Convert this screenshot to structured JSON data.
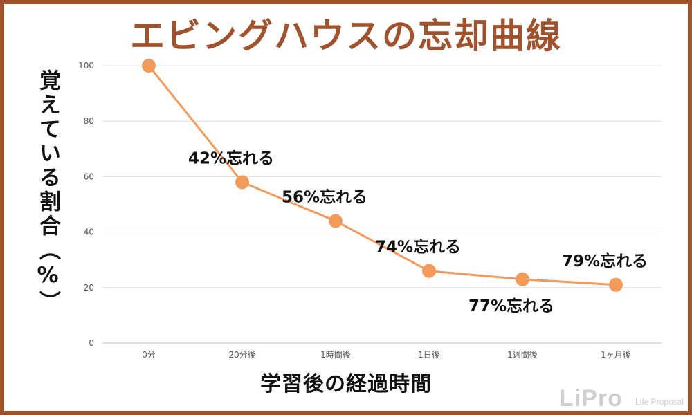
{
  "chart_data": {
    "type": "line",
    "title": "エビングハウスの忘却曲線",
    "ylabel": "覚えている割合（%）",
    "xlabel": "学習後の経過時間",
    "categories": [
      "0分",
      "20分後",
      "1時間後",
      "1日後",
      "1週間後",
      "1ヶ月後"
    ],
    "values": [
      100,
      58,
      44,
      26,
      23,
      21
    ],
    "ylim": [
      0,
      100
    ],
    "yticks": [
      "0",
      "20",
      "40",
      "60",
      "80",
      "100"
    ],
    "grid": true,
    "line_color": "#f29a5c",
    "annotations": [
      {
        "index": 1,
        "text": "42%忘れる",
        "position": "above"
      },
      {
        "index": 2,
        "text": "56%忘れる",
        "position": "above"
      },
      {
        "index": 3,
        "text": "74%忘れる",
        "position": "above"
      },
      {
        "index": 4,
        "text": "77%忘れる",
        "position": "below"
      },
      {
        "index": 5,
        "text": "79%忘れる",
        "position": "above"
      }
    ]
  },
  "branding": {
    "logo_text": "LiPro",
    "logo_sub": "Life Proposal"
  },
  "colors": {
    "frame": "#a0522d",
    "title": "#a0522d",
    "grid": "#dddddd"
  }
}
